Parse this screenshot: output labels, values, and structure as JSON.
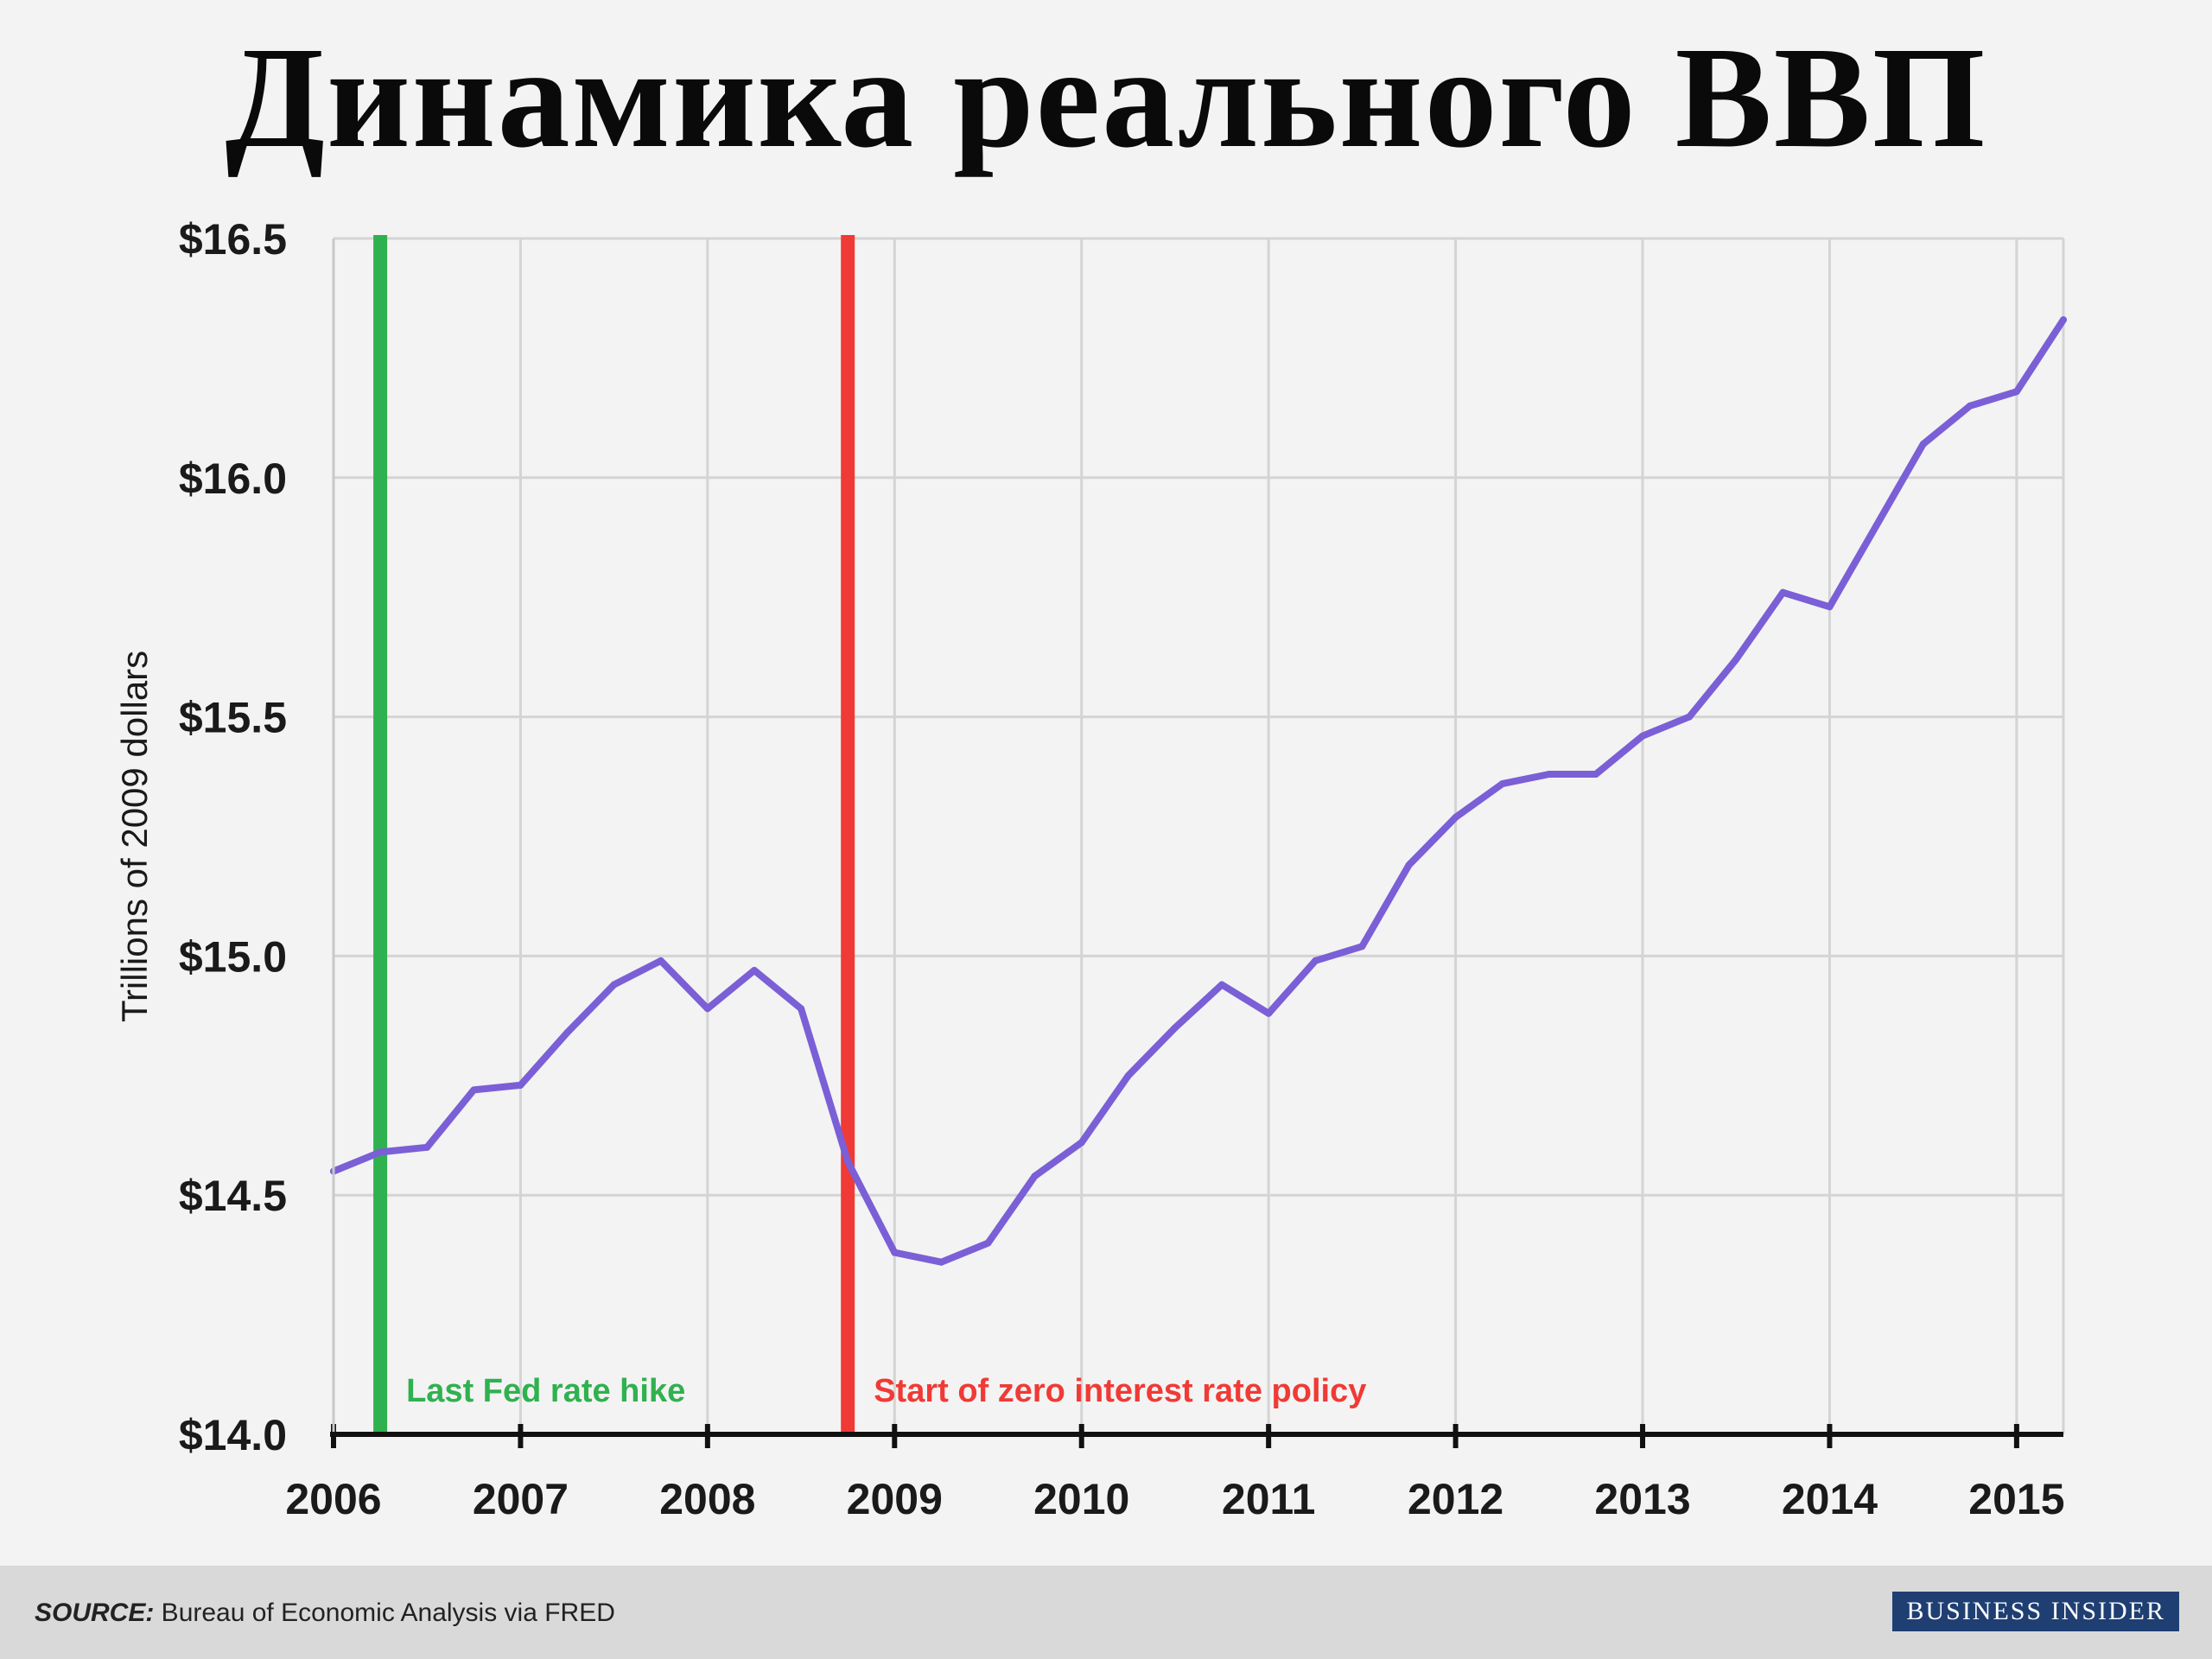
{
  "title": "Динамика реального ВВП",
  "chart_data": {
    "type": "line",
    "ylabel": "Trillions of 2009 dollars",
    "xlabel": "",
    "xlim": [
      2006.0,
      2015.25
    ],
    "ylim": [
      14.0,
      16.5
    ],
    "x_ticks": [
      2006,
      2007,
      2008,
      2009,
      2010,
      2011,
      2012,
      2013,
      2014,
      2015
    ],
    "x_tick_labels": [
      "2006",
      "2007",
      "2008",
      "2009",
      "2010",
      "2011",
      "2012",
      "2013",
      "2014",
      "2015"
    ],
    "y_ticks": [
      14.0,
      14.5,
      15.0,
      15.5,
      16.0,
      16.5
    ],
    "y_tick_labels": [
      "$14.0",
      "$14.5",
      "$15.0",
      "$15.5",
      "$16.0",
      "$16.5"
    ],
    "grid": true,
    "series": [
      {
        "color": "#7b5fd6",
        "x": [
          2006.0,
          2006.25,
          2006.5,
          2006.75,
          2007.0,
          2007.25,
          2007.5,
          2007.75,
          2008.0,
          2008.25,
          2008.5,
          2008.75,
          2009.0,
          2009.25,
          2009.5,
          2009.75,
          2010.0,
          2010.25,
          2010.5,
          2010.75,
          2011.0,
          2011.25,
          2011.5,
          2011.75,
          2012.0,
          2012.25,
          2012.5,
          2012.75,
          2013.0,
          2013.25,
          2013.5,
          2013.75,
          2014.0,
          2014.25,
          2014.5,
          2014.75,
          2015.0,
          2015.25
        ],
        "y": [
          14.55,
          14.59,
          14.6,
          14.72,
          14.73,
          14.84,
          14.94,
          14.99,
          14.89,
          14.97,
          14.89,
          14.57,
          14.38,
          14.36,
          14.4,
          14.54,
          14.61,
          14.75,
          14.85,
          14.94,
          14.88,
          14.99,
          15.02,
          15.19,
          15.29,
          15.36,
          15.38,
          15.38,
          15.46,
          15.5,
          15.62,
          15.76,
          15.73,
          15.9,
          16.07,
          16.15,
          16.18,
          16.33
        ]
      }
    ],
    "annotations": [
      {
        "x": 2006.25,
        "text": "Last Fed rate hike",
        "color": "#2fb14f"
      },
      {
        "x": 2008.75,
        "text": "Start of zero interest rate policy",
        "color": "#f03a35"
      }
    ]
  },
  "footer": {
    "source_label": "SOURCE:",
    "source_text": " Bureau of Economic Analysis via FRED",
    "brand": "BUSINESS INSIDER"
  }
}
